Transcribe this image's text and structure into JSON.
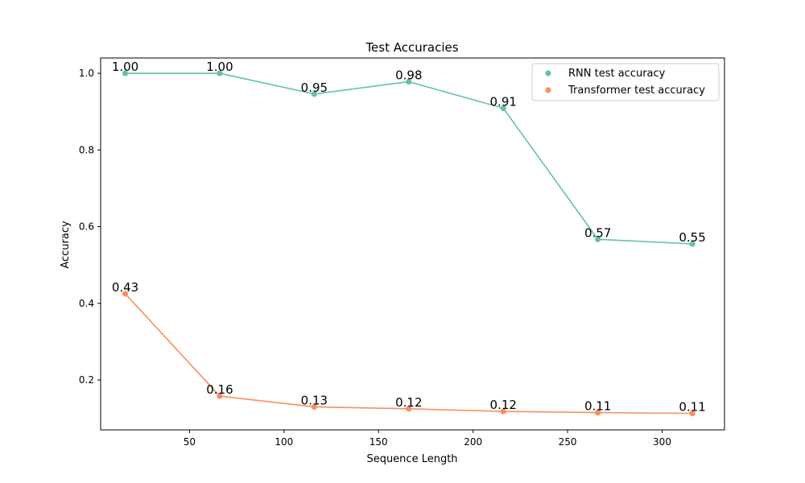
{
  "chart_data": {
    "type": "line",
    "title": "Test Accuracies",
    "xlabel": "Sequence Length",
    "ylabel": "Accuracy",
    "xlim": [
      3,
      333
    ],
    "ylim": [
      0.07,
      1.04
    ],
    "xticks": [
      50,
      100,
      150,
      200,
      250,
      300
    ],
    "yticks": [
      0.2,
      0.4,
      0.6,
      0.8,
      1.0
    ],
    "grid": false,
    "legend_position": "upper right",
    "x": [
      16,
      66,
      116,
      166,
      216,
      266,
      316
    ],
    "series": [
      {
        "name": "RNN test accuracy",
        "color": "#66c2a5",
        "values": [
          1.0,
          1.0,
          0.946,
          0.978,
          0.909,
          0.567,
          0.555
        ],
        "labels": [
          "1.00",
          "1.00",
          "0.95",
          "0.98",
          "0.91",
          "0.57",
          "0.55"
        ]
      },
      {
        "name": "Transformer test accuracy",
        "color": "#fc8d62",
        "values": [
          0.425,
          0.158,
          0.13,
          0.125,
          0.118,
          0.115,
          0.113
        ],
        "labels": [
          "0.43",
          "0.16",
          "0.13",
          "0.12",
          "0.12",
          "0.11",
          "0.11"
        ]
      }
    ]
  }
}
